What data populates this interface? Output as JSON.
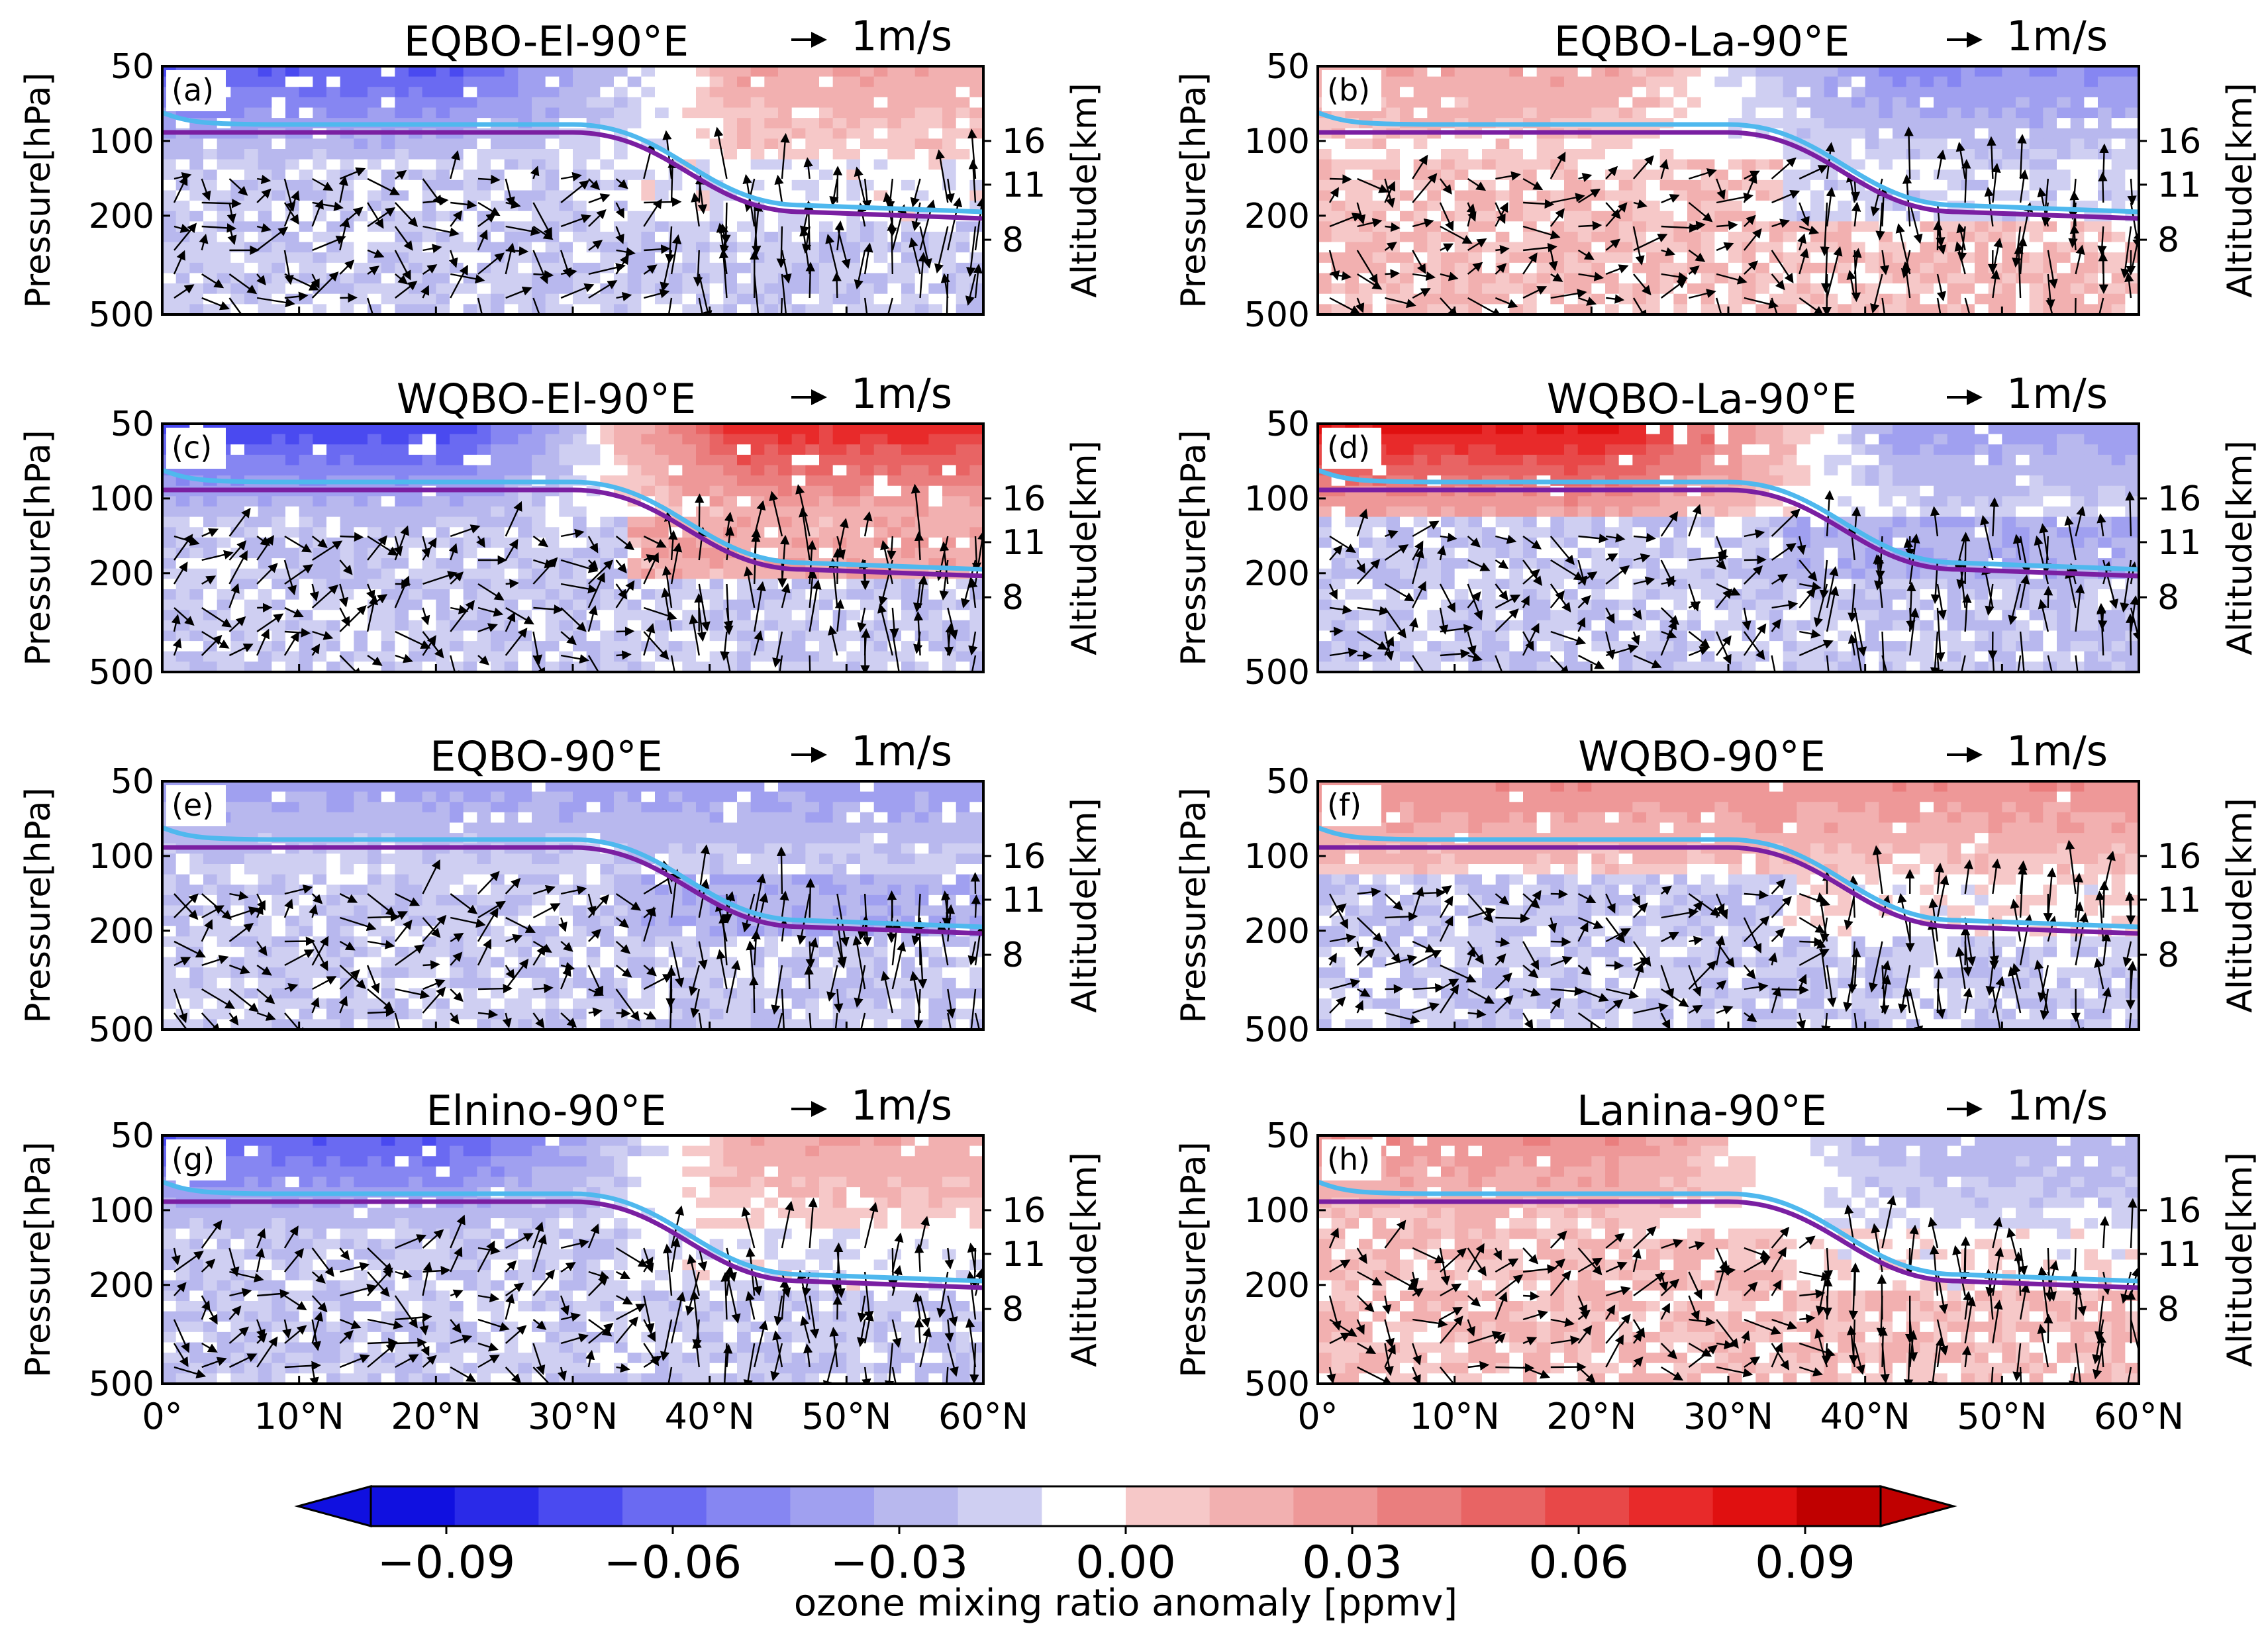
{
  "chart_data": [
    {
      "type": "contour+vector",
      "panel_label": "(a)",
      "title": "EQBO-El-90°E",
      "ref_arrow_label": "1m/s",
      "ylabel": "Pressure[hPa]",
      "ylabel_right": "Altitude[km]",
      "yticks": [
        "50",
        "100",
        "200",
        "500"
      ],
      "ylim": [
        500,
        50
      ],
      "alt_ticks": [
        "16",
        "11",
        "8"
      ],
      "xlim": [
        0,
        60
      ],
      "xticks": [
        "0°",
        "10°N",
        "20°N",
        "30°N",
        "40°N",
        "50°N",
        "60°N"
      ],
      "pattern": {
        "upper_left": -0.06,
        "upper_right": 0.02,
        "lower": -0.01
      }
    },
    {
      "type": "contour+vector",
      "panel_label": "(b)",
      "title": "EQBO-La-90°E",
      "ref_arrow_label": "1m/s",
      "ylabel": "Pressure[hPa]",
      "ylabel_right": "Altitude[km]",
      "yticks": [
        "50",
        "100",
        "200",
        "500"
      ],
      "ylim": [
        500,
        50
      ],
      "alt_ticks": [
        "16",
        "11",
        "8"
      ],
      "xlim": [
        0,
        60
      ],
      "xticks": [
        "0°",
        "10°N",
        "20°N",
        "30°N",
        "40°N",
        "50°N",
        "60°N"
      ],
      "pattern": {
        "upper_left": 0.02,
        "upper_right": -0.04,
        "lower": 0.01
      }
    },
    {
      "type": "contour+vector",
      "panel_label": "(c)",
      "title": "WQBO-El-90°E",
      "ref_arrow_label": "1m/s",
      "ylabel": "Pressure[hPa]",
      "ylabel_right": "Altitude[km]",
      "yticks": [
        "50",
        "100",
        "200",
        "500"
      ],
      "ylim": [
        500,
        50
      ],
      "alt_ticks": [
        "16",
        "11",
        "8"
      ],
      "xlim": [
        0,
        60
      ],
      "xticks": [
        "0°",
        "10°N",
        "20°N",
        "30°N",
        "40°N",
        "50°N",
        "60°N"
      ],
      "pattern": {
        "upper_left": -0.07,
        "upper_right": 0.07,
        "lower": -0.01
      }
    },
    {
      "type": "contour+vector",
      "panel_label": "(d)",
      "title": "WQBO-La-90°E",
      "ref_arrow_label": "1m/s",
      "ylabel": "Pressure[hPa]",
      "ylabel_right": "Altitude[km]",
      "yticks": [
        "50",
        "100",
        "200",
        "500"
      ],
      "ylim": [
        500,
        50
      ],
      "alt_ticks": [
        "16",
        "11",
        "8"
      ],
      "xlim": [
        0,
        60
      ],
      "xticks": [
        "0°",
        "10°N",
        "20°N",
        "30°N",
        "40°N",
        "50°N",
        "60°N"
      ],
      "pattern": {
        "upper_left": 0.08,
        "upper_right": -0.03,
        "lower": -0.01
      }
    },
    {
      "type": "contour+vector",
      "panel_label": "(e)",
      "title": "EQBO-90°E",
      "ref_arrow_label": "1m/s",
      "ylabel": "Pressure[hPa]",
      "ylabel_right": "Altitude[km]",
      "yticks": [
        "50",
        "100",
        "200",
        "500"
      ],
      "ylim": [
        500,
        50
      ],
      "alt_ticks": [
        "16",
        "11",
        "8"
      ],
      "xlim": [
        0,
        60
      ],
      "xticks": [
        "0°",
        "10°N",
        "20°N",
        "30°N",
        "40°N",
        "50°N",
        "60°N"
      ],
      "pattern": {
        "upper_left": -0.03,
        "upper_right": -0.03,
        "lower": -0.01
      }
    },
    {
      "type": "contour+vector",
      "panel_label": "(f)",
      "title": "WQBO-90°E",
      "ref_arrow_label": "1m/s",
      "ylabel": "Pressure[hPa]",
      "ylabel_right": "Altitude[km]",
      "yticks": [
        "50",
        "100",
        "200",
        "500"
      ],
      "ylim": [
        500,
        50
      ],
      "alt_ticks": [
        "16",
        "11",
        "8"
      ],
      "xlim": [
        0,
        60
      ],
      "xticks": [
        "0°",
        "10°N",
        "20°N",
        "30°N",
        "40°N",
        "50°N",
        "60°N"
      ],
      "pattern": {
        "upper_left": 0.03,
        "upper_right": 0.03,
        "lower": -0.01
      }
    },
    {
      "type": "contour+vector",
      "panel_label": "(g)",
      "title": "Elnino-90°E",
      "ref_arrow_label": "1m/s",
      "ylabel": "Pressure[hPa]",
      "ylabel_right": "Altitude[km]",
      "yticks": [
        "50",
        "100",
        "200",
        "500"
      ],
      "ylim": [
        500,
        50
      ],
      "alt_ticks": [
        "16",
        "11",
        "8"
      ],
      "xlim": [
        0,
        60
      ],
      "xticks": [
        "0°",
        "10°N",
        "20°N",
        "30°N",
        "40°N",
        "50°N",
        "60°N"
      ],
      "pattern": {
        "upper_left": -0.06,
        "upper_right": 0.02,
        "lower": -0.01
      }
    },
    {
      "type": "contour+vector",
      "panel_label": "(h)",
      "title": "Lanina-90°E",
      "ref_arrow_label": "1m/s",
      "ylabel": "Pressure[hPa]",
      "ylabel_right": "Altitude[km]",
      "yticks": [
        "50",
        "100",
        "200",
        "500"
      ],
      "ylim": [
        500,
        50
      ],
      "alt_ticks": [
        "16",
        "11",
        "8"
      ],
      "xlim": [
        0,
        60
      ],
      "xticks": [
        "0°",
        "10°N",
        "20°N",
        "30°N",
        "40°N",
        "50°N",
        "60°N"
      ],
      "pattern": {
        "upper_left": 0.03,
        "upper_right": -0.02,
        "lower": 0.01
      }
    }
  ],
  "colorbar": {
    "label": "ozone mixing ratio anomaly [ppmv]",
    "ticks": [
      "−0.09",
      "−0.06",
      "−0.03",
      "0.00",
      "0.03",
      "0.06",
      "0.09"
    ],
    "tick_values": [
      -0.09,
      -0.06,
      -0.03,
      0.0,
      0.03,
      0.06,
      0.09
    ],
    "range": [
      -0.1,
      0.1
    ],
    "levels": 22,
    "colors": [
      "#1010e0",
      "#2a2ae8",
      "#4a4af0",
      "#6a6af2",
      "#8686f2",
      "#a0a0f0",
      "#b8b8ee",
      "#cfcff2",
      "#ffffff",
      "#f6c8c8",
      "#f2b0b0",
      "#ee9898",
      "#ea7e7e",
      "#e86464",
      "#e84848",
      "#e82a2a",
      "#e01010",
      "#c00000"
    ],
    "extend": "both"
  },
  "lines": {
    "tropopause_purple_color": "#7a1fa2",
    "tropopause_blue_color": "#4fb8ee"
  }
}
